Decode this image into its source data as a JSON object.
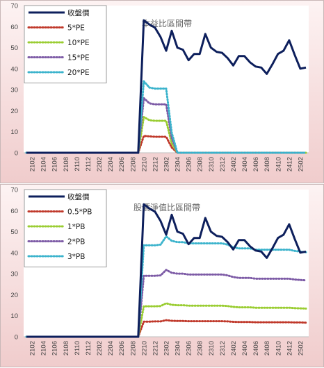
{
  "chart_data": [
    {
      "type": "line",
      "title": "本益比區間帶",
      "ylim": [
        0,
        70
      ],
      "yticks": [
        0,
        10,
        20,
        30,
        40,
        50,
        60,
        70
      ],
      "legend_position": "top-left",
      "x": [
        "2101",
        "2102",
        "2103",
        "2104",
        "2105",
        "2106",
        "2107",
        "2108",
        "2109",
        "2110",
        "2111",
        "2112",
        "2201",
        "2202",
        "2203",
        "2204",
        "2205",
        "2206",
        "2207",
        "2208",
        "2209",
        "2210",
        "2211",
        "2212",
        "2301",
        "2302",
        "2303",
        "2304",
        "2305",
        "2306",
        "2307",
        "2308",
        "2309",
        "2310",
        "2311",
        "2312",
        "2401",
        "2402",
        "2403",
        "2404",
        "2405",
        "2406",
        "2407",
        "2408",
        "2409",
        "2410",
        "2411",
        "2412",
        "2501",
        "2502",
        "2503"
      ],
      "xtick_labels": [
        "2102",
        "2104",
        "2106",
        "2108",
        "2110",
        "2112",
        "2202",
        "2204",
        "2206",
        "2208",
        "2210",
        "2212",
        "2302",
        "2304",
        "2306",
        "2308",
        "2310",
        "2312",
        "2402",
        "2404",
        "2406",
        "2408",
        "2410",
        "2412",
        "2502"
      ],
      "series": [
        {
          "name": "收盤價",
          "color": "#0d1f5c",
          "style": "solid",
          "values": [
            0,
            0,
            0,
            0,
            0,
            0,
            0,
            0,
            0,
            0,
            0,
            0,
            0,
            0,
            0,
            0,
            0,
            0,
            0,
            0,
            0,
            63,
            61,
            59.5,
            55,
            48.5,
            58,
            50,
            49,
            44,
            47,
            47,
            56.5,
            50,
            48,
            47.5,
            45,
            41.5,
            46,
            46,
            43,
            41,
            40.5,
            37.5,
            42,
            47,
            48.5,
            53.5,
            46.5,
            40,
            40.5
          ]
        },
        {
          "name": "5*PE",
          "color": "#c0392b",
          "style": "dotted",
          "values": [
            0,
            0,
            0,
            0,
            0,
            0,
            0,
            0,
            0,
            0,
            0,
            0,
            0,
            0,
            0,
            0,
            0,
            0,
            0,
            0,
            0,
            8,
            7.8,
            7.6,
            7.6,
            7.6,
            2.5,
            0,
            0,
            0,
            0,
            0,
            0,
            0,
            0,
            0,
            0,
            0,
            0,
            0,
            0,
            0,
            0,
            0,
            0,
            0,
            0,
            0,
            0,
            0,
            0
          ]
        },
        {
          "name": "10*PE",
          "color": "#9acd32",
          "style": "dotted",
          "values": [
            0,
            0,
            0,
            0,
            0,
            0,
            0,
            0,
            0,
            0,
            0,
            0,
            0,
            0,
            0,
            0,
            0,
            0,
            0,
            0,
            0,
            17,
            15.5,
            15.2,
            15.2,
            15.2,
            4.5,
            0,
            0,
            0,
            0,
            0,
            0,
            0,
            0,
            0,
            0,
            0,
            0,
            0,
            0,
            0,
            0,
            0,
            0,
            0,
            0,
            0,
            0,
            0,
            0
          ]
        },
        {
          "name": "15*PE",
          "color": "#7d5ba6",
          "style": "dotted",
          "values": [
            0,
            0,
            0,
            0,
            0,
            0,
            0,
            0,
            0,
            0,
            0,
            0,
            0,
            0,
            0,
            0,
            0,
            0,
            0,
            0,
            0,
            26,
            23.5,
            23,
            23,
            23,
            7,
            0,
            0,
            0,
            0,
            0,
            0,
            0,
            0,
            0,
            0,
            0,
            0,
            0,
            0,
            0,
            0,
            0,
            0,
            0,
            0,
            0,
            0,
            0,
            0
          ]
        },
        {
          "name": "20*PE",
          "color": "#3bb3cc",
          "style": "dotted",
          "values": [
            0,
            0,
            0,
            0,
            0,
            0,
            0,
            0,
            0,
            0,
            0,
            0,
            0,
            0,
            0,
            0,
            0,
            0,
            0,
            0,
            0,
            34,
            31,
            30.5,
            30.5,
            30.5,
            9.5,
            0,
            0,
            0,
            0,
            0,
            0,
            0,
            0,
            0,
            0,
            0,
            0,
            0,
            0,
            0,
            0,
            0,
            0,
            0,
            0,
            0,
            0,
            0,
            0
          ]
        }
      ]
    },
    {
      "type": "line",
      "title": "股價淨值比區間帶",
      "ylim": [
        0,
        70
      ],
      "yticks": [
        0,
        10,
        20,
        30,
        40,
        50,
        60,
        70
      ],
      "legend_position": "top-left",
      "x": [
        "2101",
        "2102",
        "2103",
        "2104",
        "2105",
        "2106",
        "2107",
        "2108",
        "2109",
        "2110",
        "2111",
        "2112",
        "2201",
        "2202",
        "2203",
        "2204",
        "2205",
        "2206",
        "2207",
        "2208",
        "2209",
        "2210",
        "2211",
        "2212",
        "2301",
        "2302",
        "2303",
        "2304",
        "2305",
        "2306",
        "2307",
        "2308",
        "2309",
        "2310",
        "2311",
        "2312",
        "2401",
        "2402",
        "2403",
        "2404",
        "2405",
        "2406",
        "2407",
        "2408",
        "2409",
        "2410",
        "2411",
        "2412",
        "2501",
        "2502",
        "2503"
      ],
      "xtick_labels": [
        "2102",
        "2104",
        "2106",
        "2108",
        "2110",
        "2112",
        "2202",
        "2204",
        "2206",
        "2208",
        "2210",
        "2212",
        "2302",
        "2304",
        "2306",
        "2308",
        "2310",
        "2312",
        "2402",
        "2404",
        "2406",
        "2408",
        "2410",
        "2412",
        "2502"
      ],
      "series": [
        {
          "name": "收盤價",
          "color": "#0d1f5c",
          "style": "solid",
          "values": [
            0,
            0,
            0,
            0,
            0,
            0,
            0,
            0,
            0,
            0,
            0,
            0,
            0,
            0,
            0,
            0,
            0,
            0,
            0,
            0,
            0,
            63,
            61,
            59.5,
            55,
            48.5,
            58,
            50,
            49,
            44,
            47,
            47,
            56.5,
            50,
            48,
            47.5,
            45,
            41.5,
            46,
            46,
            43,
            41,
            40.5,
            37.5,
            42,
            47,
            48.5,
            53.5,
            46.5,
            40,
            40.5
          ]
        },
        {
          "name": "0.5*PB",
          "color": "#c0392b",
          "style": "dotted",
          "values": [
            0,
            0,
            0,
            0,
            0,
            0,
            0,
            0,
            0,
            0,
            0,
            0,
            0,
            0,
            0,
            0,
            0,
            0,
            0,
            0,
            0,
            7.2,
            7.2,
            7.3,
            7.3,
            7.9,
            7.6,
            7.5,
            7.5,
            7.4,
            7.4,
            7.4,
            7.4,
            7.4,
            7.4,
            7.4,
            7.3,
            7.1,
            7.0,
            7.0,
            7.0,
            6.9,
            6.9,
            6.9,
            6.9,
            6.9,
            6.9,
            6.9,
            6.8,
            6.8,
            6.7
          ]
        },
        {
          "name": "1*PB",
          "color": "#9acd32",
          "style": "dotted",
          "values": [
            0,
            0,
            0,
            0,
            0,
            0,
            0,
            0,
            0,
            0,
            0,
            0,
            0,
            0,
            0,
            0,
            0,
            0,
            0,
            0,
            0,
            14.5,
            14.5,
            14.5,
            14.6,
            15.9,
            15.2,
            15.0,
            15.0,
            14.8,
            14.8,
            14.8,
            14.8,
            14.8,
            14.8,
            14.8,
            14.6,
            14.2,
            14.0,
            14.0,
            14.0,
            13.8,
            13.8,
            13.8,
            13.8,
            13.8,
            13.8,
            13.8,
            13.6,
            13.5,
            13.4
          ]
        },
        {
          "name": "2*PB",
          "color": "#7d5ba6",
          "style": "dotted",
          "values": [
            0,
            0,
            0,
            0,
            0,
            0,
            0,
            0,
            0,
            0,
            0,
            0,
            0,
            0,
            0,
            0,
            0,
            0,
            0,
            0,
            0,
            29,
            29,
            29,
            29.2,
            31.8,
            30.4,
            30,
            30,
            29.6,
            29.6,
            29.6,
            29.6,
            29.6,
            29.6,
            29.6,
            29.2,
            28.4,
            28,
            28,
            28,
            27.6,
            27.6,
            27.6,
            27.6,
            27.6,
            27.6,
            27.6,
            27.2,
            27,
            26.8
          ]
        },
        {
          "name": "3*PB",
          "color": "#3bb3cc",
          "style": "dotted",
          "values": [
            0,
            0,
            0,
            0,
            0,
            0,
            0,
            0,
            0,
            0,
            0,
            0,
            0,
            0,
            0,
            0,
            0,
            0,
            0,
            0,
            0,
            43.5,
            43.5,
            43.5,
            43.8,
            47.7,
            45.6,
            45,
            45,
            44.4,
            44.4,
            44.4,
            44.4,
            44.4,
            44.4,
            44.4,
            43.8,
            42.6,
            42,
            42,
            42,
            41.4,
            41.4,
            41.4,
            41.4,
            41.4,
            41.4,
            41.4,
            40.8,
            40.5,
            40.2
          ]
        }
      ]
    }
  ]
}
